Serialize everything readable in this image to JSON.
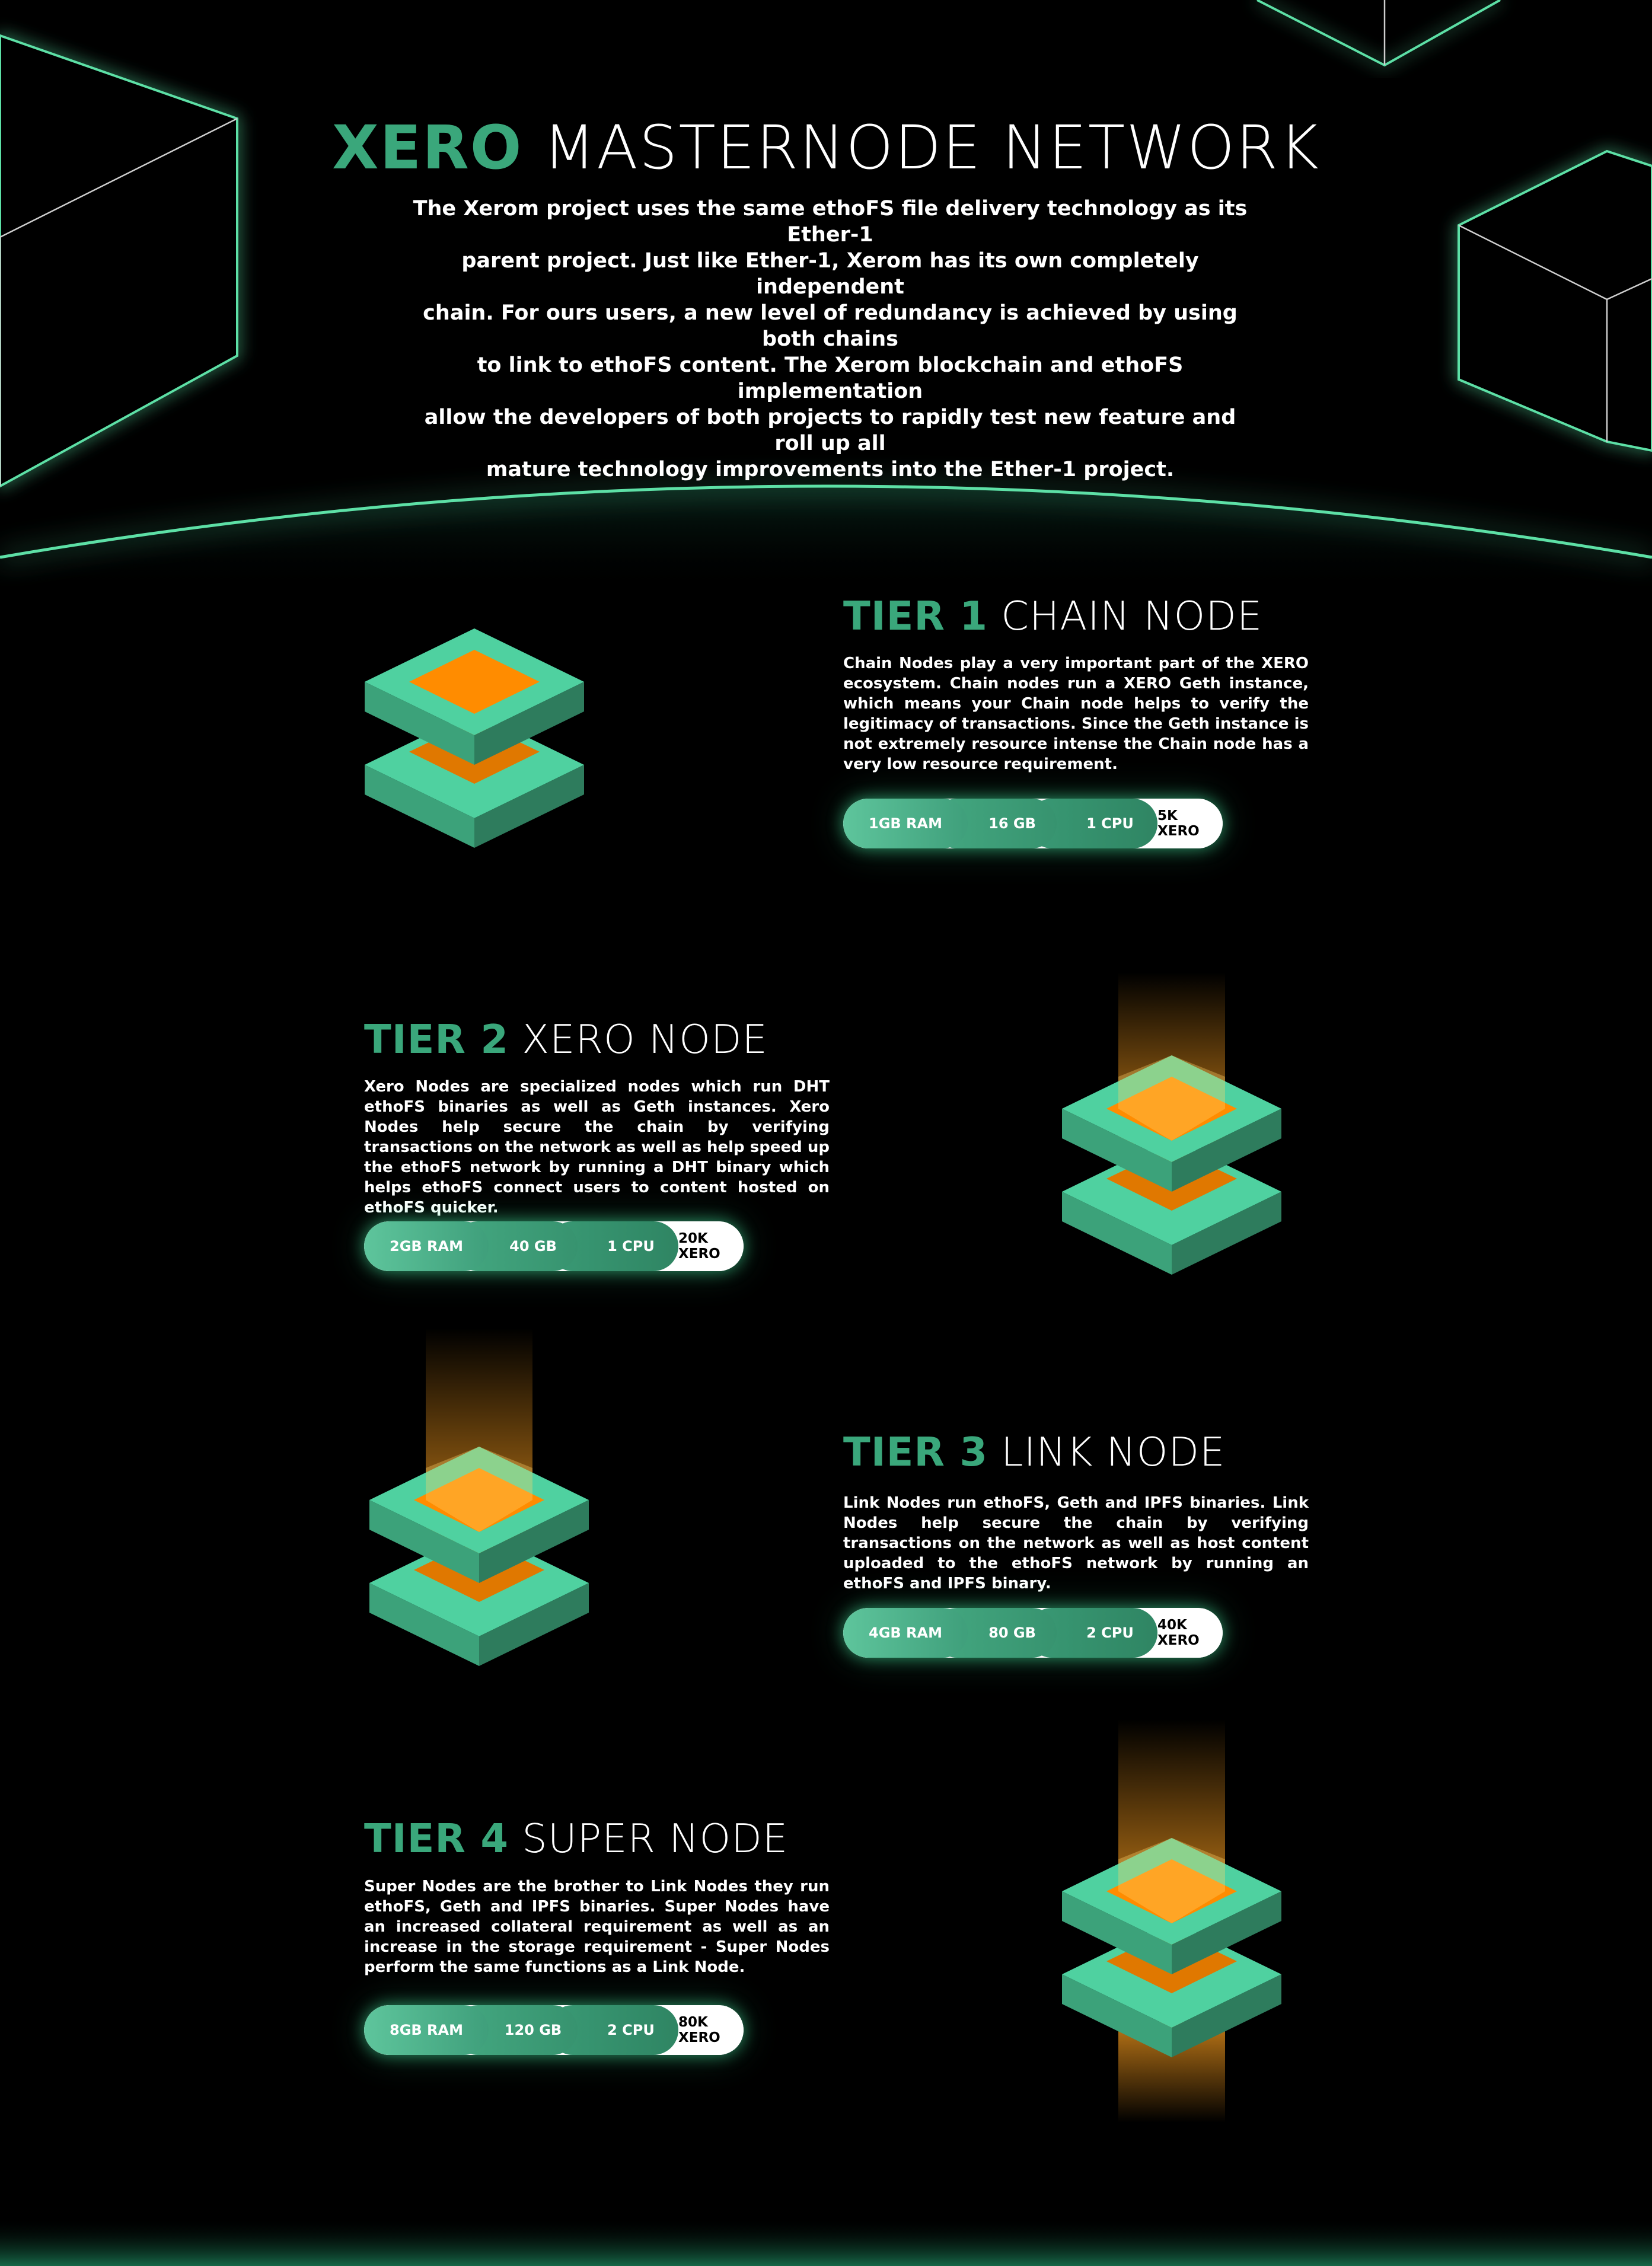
{
  "header": {
    "title_accent": "XERO",
    "title_rest": " MASTERNODE NETWORK",
    "intro_lines": [
      "The Xerom project uses the same ethoFS file delivery technology as its Ether-1",
      "parent project.  Just like Ether-1, Xerom has its own completely independent",
      "chain.  For ours users, a new level of redundancy is achieved by using both chains",
      "to link to ethoFS content.  The Xerom blockchain and ethoFS implementation",
      "allow the developers of both projects to rapidly test new feature and roll up all",
      "mature technology improvements into the Ether-1 project."
    ]
  },
  "tiers": [
    {
      "label": "TIER 1",
      "name": " CHAIN NODE",
      "description": "Chain Nodes play a very important part of the XERO ecosystem. Chain nodes run a XERO Geth instance, which means your Chain node helps to verify the legitimacy of transactions. Since the Geth instance is not extremely resource intense the Chain node has a very low resource requirement.",
      "specs": {
        "ram": "1GB RAM",
        "storage": "16 GB",
        "cpu": "1 CPU",
        "collateral": "5K XERO"
      },
      "icon": "stacked-node-icon"
    },
    {
      "label": "TIER 2",
      "name": " XERO NODE",
      "description": "Xero Nodes are specialized nodes which run DHT ethoFS binaries as well as Geth instances. Xero Nodes help secure the chain by verifying transactions on the network as well as help speed up the ethoFS network by running a DHT binary which helps ethoFS connect users to content hosted on ethoFS quicker.",
      "specs": {
        "ram": "2GB RAM",
        "storage": "40 GB",
        "cpu": "1 CPU",
        "collateral": "20K XERO"
      },
      "icon": "stacked-node-beam-icon"
    },
    {
      "label": "TIER 3",
      "name": " LINK NODE",
      "description": "Link Nodes run ethoFS, Geth and IPFS binaries. Link Nodes help secure the chain by verifying transactions on the network as well as host content uploaded to the ethoFS network by running an ethoFS and IPFS binary.",
      "specs": {
        "ram": "4GB RAM",
        "storage": "80 GB",
        "cpu": "2 CPU",
        "collateral": "40K XERO"
      },
      "icon": "stacked-node-beam-icon"
    },
    {
      "label": "TIER 4",
      "name": " SUPER NODE",
      "description": "Super Nodes are the brother to Link Nodes they run ethoFS, Geth and IPFS binaries. Super Nodes have an increased collateral requirement as well as an increase in the storage requirement - Super Nodes perform the same functions as a Link Node.",
      "specs": {
        "ram": "8GB RAM",
        "storage": "120 GB",
        "cpu": "2 CPU",
        "collateral": "80K XERO"
      },
      "icon": "stacked-node-double-beam-icon"
    }
  ],
  "colors": {
    "accent_green": "#3aa77b",
    "glow_green": "#46e6a0",
    "node_orange": "#ff8c00",
    "background": "#000000"
  }
}
